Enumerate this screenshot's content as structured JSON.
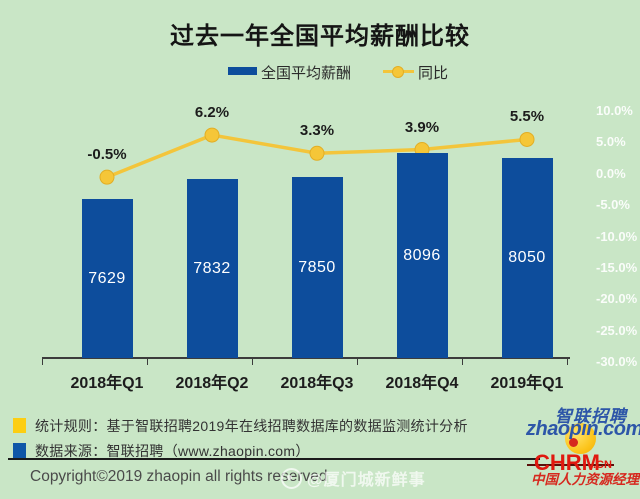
{
  "title": "过去一年全国平均薪酬比较",
  "legend": [
    {
      "label": "全国平均薪酬",
      "type": "bar",
      "color": "#0d4d9c"
    },
    {
      "label": "同比",
      "type": "line",
      "color": "#f3c53b"
    }
  ],
  "chart_data": {
    "type": "bar",
    "categories": [
      "2018年Q1",
      "2018年Q2",
      "2018年Q3",
      "2018年Q4",
      "2019年Q1"
    ],
    "series": [
      {
        "name": "全国平均薪酬",
        "type": "bar",
        "values": [
          7629,
          7832,
          7850,
          8096,
          8050
        ],
        "color": "#0d4d9c"
      },
      {
        "name": "同比",
        "type": "line",
        "values": [
          -0.5,
          6.2,
          3.3,
          3.9,
          5.5
        ],
        "point_labels": [
          "-0.5%",
          "6.2%",
          "3.3%",
          "3.9%",
          "5.5%"
        ],
        "color": "#f3c53b"
      }
    ],
    "right_axis": {
      "tick_labels": [
        "10.0%",
        "5.0%",
        "0.0%",
        "-5.0%",
        "-10.0%",
        "-15.0%",
        "-20.0%",
        "-25.0%",
        "-30.0%"
      ],
      "max": 10,
      "min": -30,
      "unit": "%"
    },
    "legend_position": "top",
    "grid": false
  },
  "notes": [
    {
      "swatch_color": "#fcce13",
      "text": "统计规则：基于智联招聘2019年在线招聘数据库的数据监测统计分析"
    },
    {
      "swatch_color": "#0f57a8",
      "text": "数据来源：智联招聘（www.zhaopin.com）"
    }
  ],
  "footer": {
    "copyright": "Copyright©2019 zhaopin all rights reserved",
    "watermark": "@厦门城新鲜事"
  },
  "logos": {
    "zhaopin_cn": "智联招聘",
    "zhaopin_domain": "zhaopin.com",
    "chrm": "CHRM",
    "chrm_suffix": ".CN",
    "chrm_caption": "中国人力资源经理"
  },
  "colors": {
    "background": "#c9e6c6",
    "bar": "#0d4d9c",
    "line": "#f3c53b",
    "axis_label": "#ffffff",
    "chrm_red": "#e0180f",
    "zhaopin_blue": "#2d56a8"
  }
}
